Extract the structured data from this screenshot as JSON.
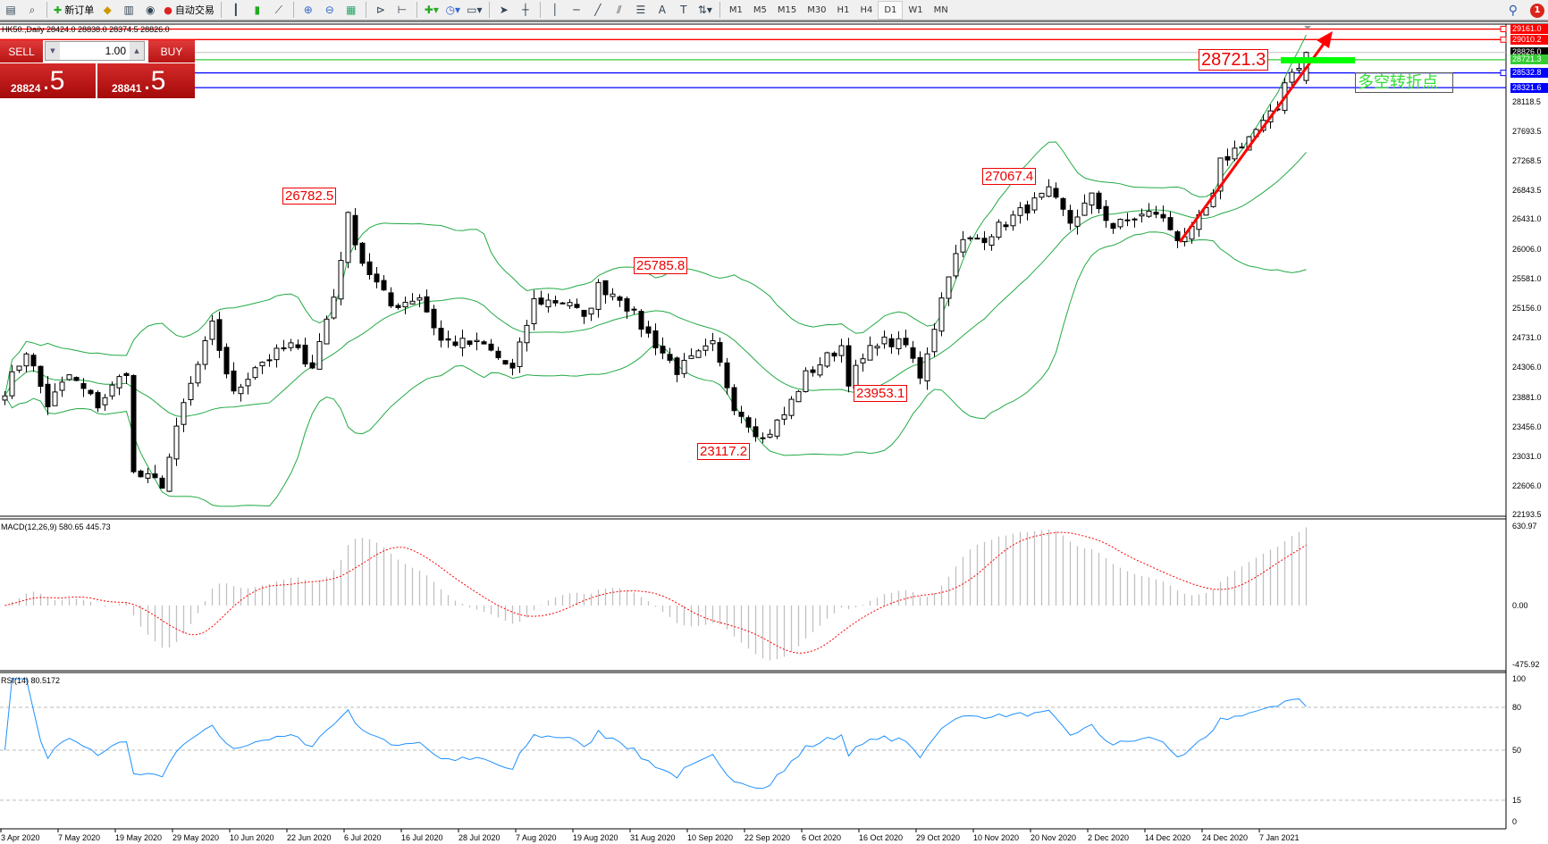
{
  "toolbar": {
    "new_order": "新订单",
    "auto_trading": "自动交易",
    "timeframes": [
      "M1",
      "M5",
      "M15",
      "M30",
      "H1",
      "H4",
      "D1",
      "W1",
      "MN"
    ],
    "active_timeframe": "D1",
    "notification_count": "1"
  },
  "chart_title": "HK50.,Daily  28424.0 28838.0 28374.5 28826.0",
  "trade_panel": {
    "sell": "SELL",
    "buy": "BUY",
    "lot": "1.00",
    "sell_price_main": "28824",
    "sell_price_frac": ".5",
    "buy_price_main": "28841",
    "buy_price_frac": ".5"
  },
  "annotations": {
    "a1": "26782.5",
    "a2": "25785.8",
    "a3": "27067.4",
    "a4": "23953.1",
    "a5": "23117.2",
    "a6": "28721.3",
    "note": "多空转折点"
  },
  "colors": {
    "bull_fill": "#ffffff",
    "bear_fill": "#000000",
    "bands": "#22aa44",
    "macd_hist": "#c0c0c0",
    "macd_signal": "#ff0000",
    "rsi": "#1e90ff",
    "resistance": "#ff0000",
    "support": "#0000ff",
    "pivot": "#33cc33",
    "arrow": "#ff0000"
  },
  "price_lines": [
    {
      "value": "29161.0",
      "price": 29161.0,
      "color": "#ff0000",
      "box": "#ff0000"
    },
    {
      "value": "29010.2",
      "price": 29010.2,
      "color": "#ff0000",
      "box": "#ff0000"
    },
    {
      "value": "28826.0",
      "price": 28826.0,
      "color": "#c0c0c0",
      "box": "#000000"
    },
    {
      "value": "28721.3",
      "price": 28721.3,
      "color": "#33cc33",
      "box": "#33cc33"
    },
    {
      "value": "28532.8",
      "price": 28532.8,
      "color": "#0000ff",
      "box": "#0000ff"
    },
    {
      "value": "28321.6",
      "price": 28321.6,
      "color": "#0000ff",
      "box": "#0000ff"
    }
  ],
  "price_axis": [
    "28118.5",
    "27693.5",
    "27268.5",
    "26843.5",
    "26431.0",
    "26006.0",
    "25581.0",
    "25156.0",
    "24731.0",
    "24306.0",
    "23881.0",
    "23456.0",
    "23031.0",
    "22606.0",
    "22193.5"
  ],
  "macd": {
    "label": "MACD(12,26,9) 580.65 445.73",
    "axis": [
      "630.97",
      "0.00",
      "-475.92"
    ],
    "max": 630.97,
    "min": -475.92
  },
  "rsi": {
    "label": "RSI(14) 80.5172",
    "axis": [
      "100",
      "80",
      "50",
      "15",
      "0"
    ],
    "levels": [
      80,
      50,
      15
    ]
  },
  "date_axis": [
    "3 Apr 2020",
    "7 May 2020",
    "19 May 2020",
    "29 May 2020",
    "10 Jun 2020",
    "22 Jun 2020",
    "6 Jul 2020",
    "16 Jul 2020",
    "28 Jul 2020",
    "7 Aug 2020",
    "19 Aug 2020",
    "31 Aug 2020",
    "10 Sep 2020",
    "22 Sep 2020",
    "6 Oct 2020",
    "16 Oct 2020",
    "29 Oct 2020",
    "10 Nov 2020",
    "20 Nov 2020",
    "2 Dec 2020",
    "14 Dec 2020",
    "24 Dec 2020",
    "7 Jan 2021"
  ],
  "chart_data": {
    "type": "candlestick",
    "symbol": "HK50.",
    "period": "Daily",
    "ylim": [
      22193.5,
      29161.0
    ],
    "bars": 183,
    "last_bar": {
      "open": 28424.0,
      "high": 28838.0,
      "low": 28374.5,
      "close": 28826.0
    },
    "close_waypoints": [
      [
        0,
        23990
      ],
      [
        3,
        24555
      ],
      [
        6,
        23777
      ],
      [
        9,
        24200
      ],
      [
        13,
        23777
      ],
      [
        17,
        24272
      ],
      [
        18,
        22787
      ],
      [
        22,
        22646
      ],
      [
        25,
        23777
      ],
      [
        29,
        24908
      ],
      [
        32,
        23918
      ],
      [
        35,
        24343
      ],
      [
        40,
        24626
      ],
      [
        43,
        24343
      ],
      [
        46,
        25333
      ],
      [
        48,
        26464
      ],
      [
        50,
        25828
      ],
      [
        54,
        25191
      ],
      [
        58,
        25333
      ],
      [
        61,
        24697
      ],
      [
        67,
        24626
      ],
      [
        71,
        24272
      ],
      [
        74,
        25262
      ],
      [
        79,
        25262
      ],
      [
        81,
        24980
      ],
      [
        83,
        25474
      ],
      [
        86,
        25333
      ],
      [
        89,
        24908
      ],
      [
        94,
        24272
      ],
      [
        99,
        24626
      ],
      [
        102,
        23777
      ],
      [
        106,
        23282
      ],
      [
        109,
        23636
      ],
      [
        112,
        24200
      ],
      [
        117,
        24626
      ],
      [
        118,
        24130
      ],
      [
        122,
        24697
      ],
      [
        126,
        24626
      ],
      [
        128,
        24200
      ],
      [
        130,
        24908
      ],
      [
        132,
        25686
      ],
      [
        134,
        26110
      ],
      [
        137,
        26181
      ],
      [
        140,
        26393
      ],
      [
        143,
        26605
      ],
      [
        146,
        26817
      ],
      [
        149,
        26393
      ],
      [
        152,
        26747
      ],
      [
        155,
        26322
      ],
      [
        158,
        26464
      ],
      [
        161,
        26535
      ],
      [
        164,
        26181
      ],
      [
        166,
        26252
      ],
      [
        169,
        26747
      ],
      [
        170,
        27242
      ],
      [
        173,
        27524
      ],
      [
        176,
        27807
      ],
      [
        178,
        28019
      ],
      [
        179,
        28444
      ],
      [
        181,
        28655
      ],
      [
        182,
        28826
      ]
    ],
    "indicators": [
      "Bollinger Bands(20,2)",
      "MACD(12,26,9)",
      "RSI(14)"
    ]
  }
}
